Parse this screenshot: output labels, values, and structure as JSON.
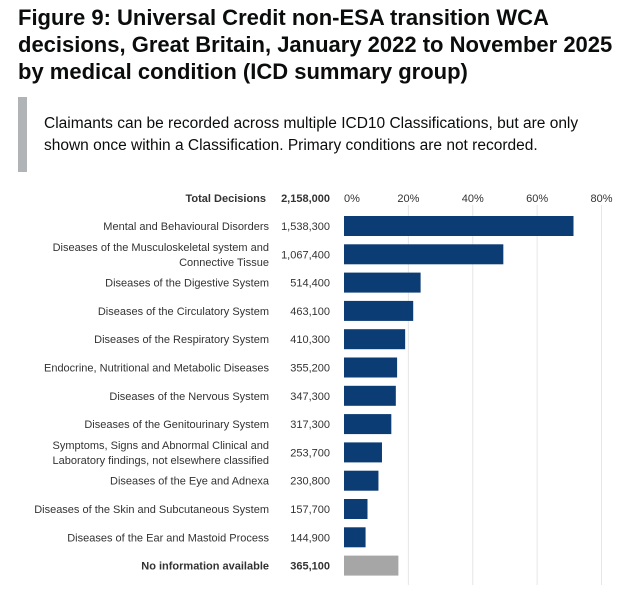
{
  "title": "Figure 9: Universal Credit non-ESA transition WCA decisions, Great Britain, January 2022 to November 2025 by medical condition (ICD summary group)",
  "note": "Claimants can be recorded across multiple ICD10 Classifications, but are only shown once within a Classification. Primary conditions are not recorded.",
  "chart_data": {
    "type": "bar",
    "orientation": "horizontal",
    "total_label": "Total Decisions",
    "total_value": "2,158,000",
    "categories": [
      [
        "Mental and Behavioural Disorders"
      ],
      [
        "Diseases of the Musculoskeletal system and",
        "Connective Tissue"
      ],
      [
        "Diseases of the Digestive System"
      ],
      [
        "Diseases of the Circulatory System"
      ],
      [
        "Diseases of the Respiratory System"
      ],
      [
        "Endocrine, Nutritional and Metabolic Diseases"
      ],
      [
        "Diseases of the Nervous System"
      ],
      [
        "Diseases of the Genitourinary System"
      ],
      [
        "Symptoms, Signs and Abnormal Clinical and",
        "Laboratory findings, not elsewhere classified"
      ],
      [
        "Diseases of the Eye and Adnexa"
      ],
      [
        "Diseases of the Skin and Subcutaneous System"
      ],
      [
        "Diseases of the Ear and Mastoid Process"
      ],
      [
        "No information available"
      ]
    ],
    "value_labels": [
      "1,538,300",
      "1,067,400",
      "514,400",
      "463,100",
      "410,300",
      "355,200",
      "347,300",
      "317,300",
      "253,700",
      "230,800",
      "157,700",
      "144,900",
      "365,100"
    ],
    "values_percent": [
      71.3,
      49.5,
      23.8,
      21.5,
      19.0,
      16.5,
      16.1,
      14.7,
      11.8,
      10.7,
      7.3,
      6.7,
      16.9
    ],
    "xlim": [
      0,
      80
    ],
    "xticks": [
      "0%",
      "20%",
      "40%",
      "60%",
      "80%"
    ],
    "grid": true,
    "colors": {
      "bar": "#0b3c73",
      "no_info": "#a6a6a6",
      "grid": "#e6e6e6"
    }
  }
}
